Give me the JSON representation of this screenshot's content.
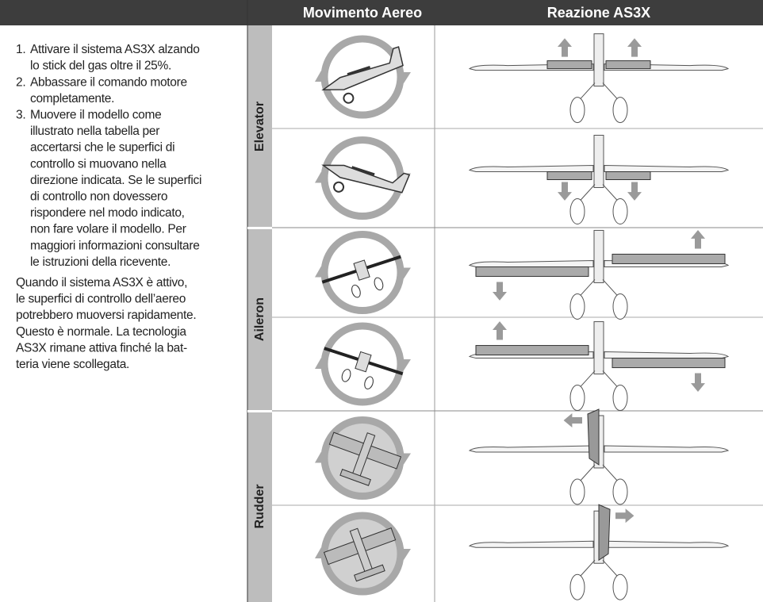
{
  "header": {
    "columns": [
      "Movimento Aereo",
      "Reazione AS3X"
    ]
  },
  "instructions": {
    "items": [
      {
        "number": "1.",
        "lines": [
          "Attivare il sistema AS3X alzando",
          "lo stick del gas oltre il 25%."
        ]
      },
      {
        "number": "2.",
        "lines": [
          "Abbassare il comando motore",
          "completamente."
        ]
      },
      {
        "number": "3.",
        "lines": [
          "Muovere il modello come",
          "illustrato nella tabella per",
          "accertarsi che le superfici di",
          "controllo si muovano nella",
          "direzione indicata. Se le superfici",
          "di controllo non dovessero",
          "rispondere nel modo indicato,",
          "non fare volare il modello. Per",
          "maggiori informazioni consultare",
          "le istruzioni della ricevente."
        ]
      }
    ],
    "note": [
      "Quando il sistema AS3X è attivo,",
      "le superfici di controllo dell’aereo",
      "potrebbero muoversi rapidamente.",
      "Questo è normale. La tecnologia",
      "AS3X rimane attiva finché la bat-",
      "teria viene scollegata."
    ]
  },
  "table": {
    "groups": [
      {
        "label": "Elevator"
      },
      {
        "label": "Aileron"
      },
      {
        "label": "Rudder"
      }
    ]
  }
}
